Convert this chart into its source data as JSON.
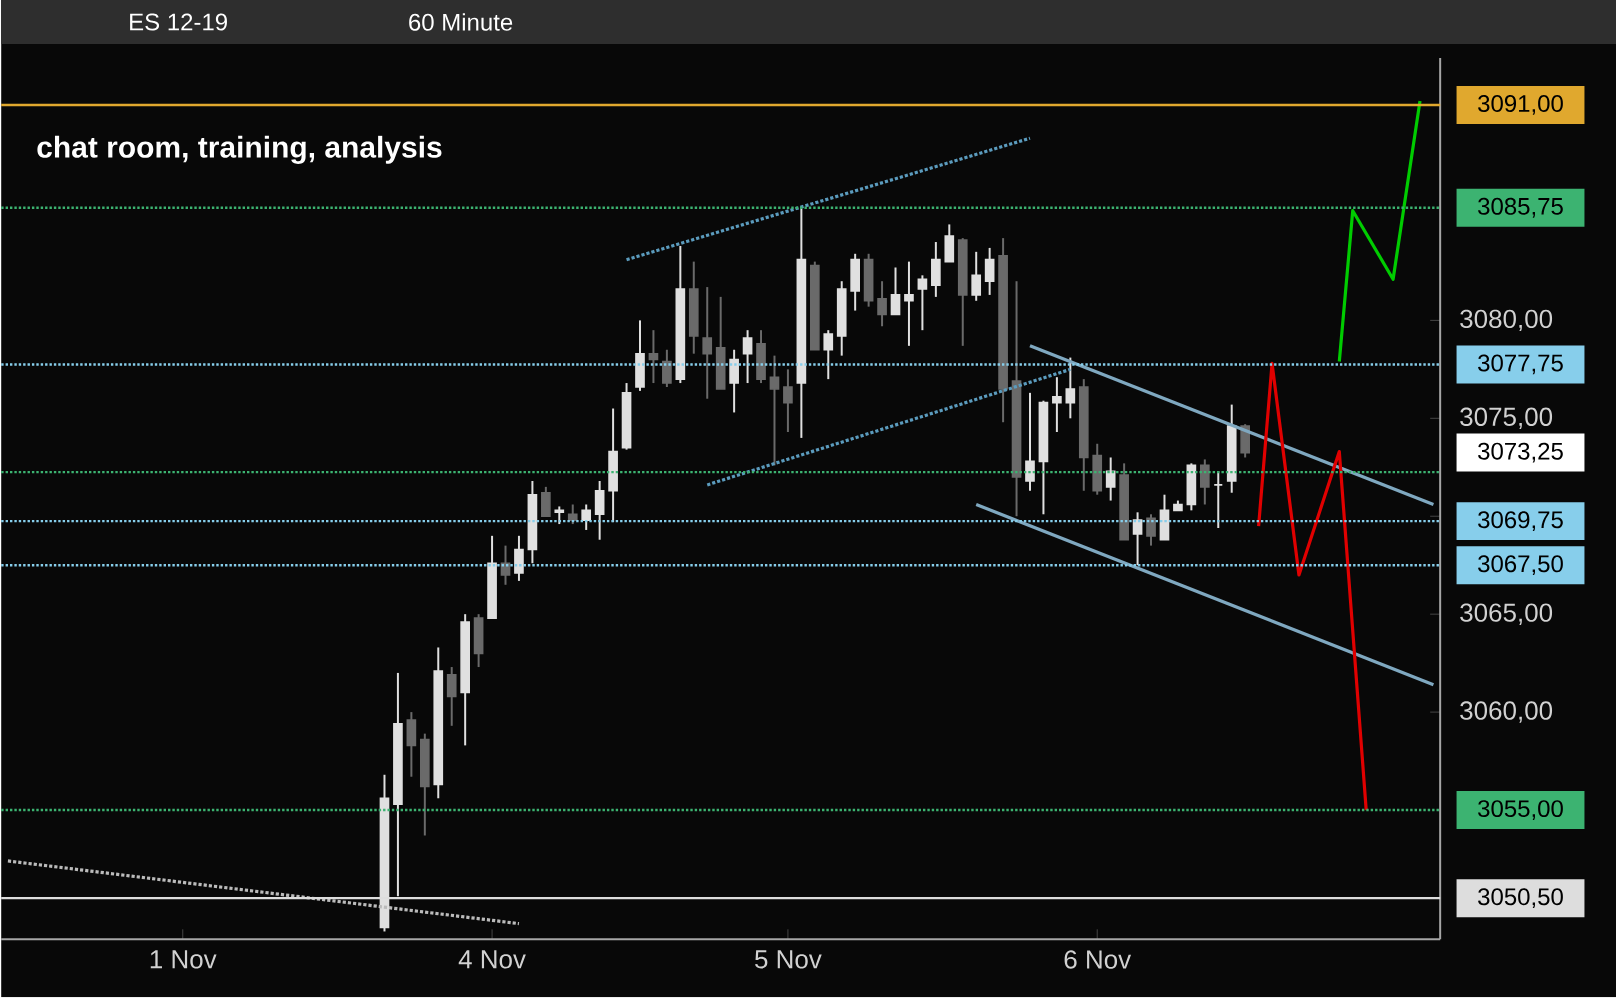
{
  "chart_data": {
    "type": "candlestick",
    "title": "ES 12-19",
    "subtitle": "chat room, training, analysis",
    "annotations": [
      "60 Minute",
      "3073,25"
    ],
    "categories": [
      null,
      null,
      null,
      null,
      null,
      null,
      null,
      null,
      null,
      null,
      null,
      null,
      null,
      "1 Nov",
      null,
      null,
      null,
      null,
      null,
      null,
      null,
      null,
      null,
      null,
      null,
      null,
      null,
      null,
      null,
      null,
      null,
      null,
      null,
      null,
      null,
      null,
      "4 Nov",
      null,
      null,
      null,
      null,
      null,
      null,
      null,
      null,
      null,
      null,
      null,
      null,
      null,
      null,
      null,
      null,
      null,
      null,
      null,
      null,
      null,
      "5 Nov",
      null,
      null,
      null,
      null,
      null,
      null,
      null,
      null,
      null,
      null,
      null,
      null,
      null,
      null,
      null,
      null,
      null,
      null,
      null,
      null,
      null,
      null,
      "6 Nov",
      null,
      null,
      null,
      null,
      null,
      null,
      null,
      null,
      null,
      null,
      null,
      null,
      null,
      null,
      null,
      null,
      null,
      null,
      null,
      null,
      null,
      null,
      null,
      null,
      null
    ],
    "ohlc": [
      null,
      null,
      null,
      null,
      null,
      null,
      null,
      null,
      null,
      null,
      null,
      null,
      null,
      null,
      null,
      null,
      null,
      null,
      null,
      null,
      null,
      null,
      null,
      null,
      null,
      null,
      null,
      null,
      [
        3049.0,
        3056.8,
        3048.8,
        3055.6
      ],
      [
        3055.3,
        3062.0,
        3050.6,
        3059.4
      ],
      [
        3059.6,
        3060.0,
        3056.7,
        3058.3
      ],
      [
        3058.6,
        3058.9,
        3053.7,
        3056.2
      ],
      [
        3056.3,
        3063.3,
        3055.6,
        3062.1
      ],
      [
        3061.9,
        3062.3,
        3059.3,
        3060.8
      ],
      [
        3061.0,
        3065.0,
        3058.3,
        3064.6
      ],
      [
        3064.8,
        3065.0,
        3062.3,
        3063.0
      ],
      [
        3064.8,
        3069.0,
        3064.8,
        3067.6
      ],
      [
        3067.6,
        3068.5,
        3066.5,
        3067.0
      ],
      [
        3067.1,
        3069.0,
        3066.7,
        3068.3
      ],
      [
        3068.3,
        3071.8,
        3067.6,
        3071.1
      ],
      [
        3071.2,
        3071.5,
        3070.0,
        3070.0
      ],
      [
        3070.2,
        3070.5,
        3069.6,
        3070.3
      ],
      [
        3070.1,
        3070.6,
        3069.6,
        3069.8
      ],
      [
        3069.8,
        3070.6,
        3069.3,
        3070.3
      ],
      [
        3070.1,
        3071.8,
        3068.8,
        3071.3
      ],
      [
        3071.3,
        3075.5,
        3069.7,
        3073.3
      ],
      [
        3073.5,
        3076.8,
        3073.4,
        3076.3
      ],
      [
        3076.6,
        3080.0,
        3076.4,
        3078.3
      ],
      [
        3078.3,
        3079.5,
        3076.8,
        3078.0
      ],
      [
        3077.9,
        3078.5,
        3076.6,
        3076.8
      ],
      [
        3077.0,
        3083.8,
        3076.8,
        3081.6
      ],
      [
        3081.6,
        3083.0,
        3078.3,
        3079.2
      ],
      [
        3079.1,
        3081.7,
        3076.0,
        3078.3
      ],
      [
        3078.6,
        3081.2,
        3076.5,
        3076.5
      ],
      [
        3076.8,
        3078.5,
        3075.3,
        3078.0
      ],
      [
        3078.3,
        3079.5,
        3076.8,
        3079.1
      ],
      [
        3078.8,
        3079.5,
        3076.8,
        3077.0
      ],
      [
        3077.1,
        3078.2,
        3072.6,
        3076.5
      ],
      [
        3076.6,
        3077.5,
        3074.3,
        3075.8
      ],
      [
        3076.8,
        3085.7,
        3074.0,
        3083.1
      ],
      [
        3082.8,
        3083.0,
        3078.5,
        3078.5
      ],
      [
        3078.5,
        3079.5,
        3077.0,
        3079.3
      ],
      [
        3079.2,
        3082.0,
        3078.2,
        3081.6
      ],
      [
        3081.5,
        3083.4,
        3080.5,
        3083.1
      ],
      [
        3083.1,
        3083.4,
        3080.7,
        3081.0
      ],
      [
        3081.1,
        3082.0,
        3079.7,
        3080.3
      ],
      [
        3080.3,
        3082.7,
        3080.3,
        3081.3
      ],
      [
        3081.0,
        3083.0,
        3078.7,
        3081.3
      ],
      [
        3081.6,
        3082.3,
        3079.5,
        3082.1
      ],
      [
        3081.8,
        3084.0,
        3081.2,
        3083.1
      ],
      [
        3083.0,
        3084.9,
        3083.0,
        3084.3
      ],
      [
        3084.1,
        3084.2,
        3078.7,
        3081.3
      ],
      [
        3081.3,
        3083.5,
        3081.0,
        3082.3
      ],
      [
        3082.0,
        3083.7,
        3081.3,
        3083.1
      ],
      [
        3083.3,
        3084.2,
        3074.8,
        3076.5
      ],
      [
        3076.9,
        3082.0,
        3070.0,
        3072.0
      ],
      [
        3071.8,
        3076.3,
        3071.3,
        3072.8
      ],
      [
        3072.8,
        3075.9,
        3070.1,
        3075.8
      ],
      [
        3075.8,
        3077.1,
        3074.3,
        3076.1
      ],
      [
        3075.8,
        3078.1,
        3075.0,
        3076.5
      ],
      [
        3076.6,
        3077.0,
        3071.3,
        3073.0
      ],
      [
        3073.1,
        3073.7,
        3071.1,
        3071.3
      ],
      [
        3071.5,
        3073.0,
        3070.8,
        3072.3
      ],
      [
        3072.1,
        3072.7,
        3068.8,
        3068.8
      ],
      [
        3069.1,
        3070.2,
        3067.5,
        3069.8
      ],
      [
        3069.9,
        3070.1,
        3068.5,
        3069.0
      ],
      [
        3068.8,
        3071.1,
        3068.8,
        3070.3
      ],
      [
        3070.3,
        3070.8,
        3070.3,
        3070.6
      ],
      [
        3070.6,
        3072.7,
        3070.3,
        3072.6
      ],
      [
        3072.6,
        3072.9,
        3070.6,
        3071.5
      ],
      [
        3071.6,
        3072.3,
        3069.4,
        3071.6
      ],
      [
        3071.8,
        3075.7,
        3071.2,
        3074.6
      ],
      [
        3074.6,
        3074.7,
        3073.0,
        3073.25
      ],
      null,
      null,
      null,
      null,
      null,
      null,
      null,
      null,
      null,
      null,
      null,
      null,
      null,
      null
    ],
    "colors": [
      null,
      null,
      null,
      null,
      null,
      null,
      null,
      null,
      null,
      null,
      null,
      null,
      null,
      null,
      null,
      null,
      null,
      null,
      null,
      null,
      null,
      null,
      null,
      null,
      null,
      null,
      null,
      null,
      "#e0e0e0",
      "#e0e0e0",
      "#6a6a6a",
      "#6a6a6a",
      "#e0e0e0",
      "#6a6a6a",
      "#e0e0e0",
      "#6a6a6a",
      "#e0e0e0",
      "#6a6a6a",
      "#e0e0e0",
      "#e0e0e0",
      "#6a6a6a",
      "#e0e0e0",
      "#6a6a6a",
      "#e0e0e0",
      "#e0e0e0",
      "#e0e0e0",
      "#e0e0e0",
      "#e0e0e0",
      "#6a6a6a",
      "#6a6a6a",
      "#e0e0e0",
      "#6a6a6a",
      "#6a6a6a",
      "#6a6a6a",
      "#e0e0e0",
      "#e0e0e0",
      "#6a6a6a",
      "#6a6a6a",
      "#6a6a6a",
      "#e0e0e0",
      "#6a6a6a",
      "#e0e0e0",
      "#e0e0e0",
      "#e0e0e0",
      "#6a6a6a",
      "#6a6a6a",
      "#e0e0e0",
      "#e0e0e0",
      "#e0e0e0",
      "#e0e0e0",
      "#e0e0e0",
      "#6a6a6a",
      "#e0e0e0",
      "#e0e0e0",
      "#6a6a6a",
      "#6a6a6a",
      "#e0e0e0",
      "#e0e0e0",
      "#e0e0e0",
      "#e0e0e0",
      "#6a6a6a",
      "#6a6a6a",
      "#e0e0e0",
      "#6a6a6a",
      "#e0e0e0",
      "#6a6a6a",
      "#e0e0e0",
      "#e0e0e0",
      "#e0e0e0",
      "#6a6a6a",
      "#e0e0e0",
      "#e0e0e0",
      "#6a6a6a",
      null,
      null,
      null,
      null,
      null,
      null,
      null,
      null,
      null,
      null,
      null,
      null,
      null,
      null
    ],
    "series": [
      {
        "type": "line",
        "color": "#5b9bbd",
        "line_style": "dotted",
        "values": [
          null,
          null,
          null,
          null,
          null,
          null,
          null,
          null,
          null,
          null,
          null,
          null,
          null,
          null,
          null,
          null,
          null,
          null,
          null,
          null,
          null,
          null,
          null,
          null,
          null,
          null,
          null,
          null,
          null,
          null,
          null,
          null,
          null,
          null,
          null,
          null,
          null,
          null,
          null,
          null,
          null,
          null,
          null,
          null,
          null,
          null,
          3083.1,
          null,
          null,
          null,
          null,
          null,
          null,
          null,
          null,
          null,
          null,
          null,
          null,
          null,
          null,
          null,
          null,
          null,
          null,
          null,
          null,
          null,
          null,
          null,
          null,
          null,
          null,
          null,
          null,
          null,
          3089.3,
          null,
          null,
          null,
          null,
          null,
          null,
          null,
          null,
          null,
          null,
          null,
          null,
          null,
          null,
          null,
          null,
          null,
          null,
          null,
          null,
          null,
          null,
          null,
          null,
          null,
          null,
          null,
          null,
          null,
          null
        ]
      },
      {
        "type": "line",
        "color": "#5b9bbd",
        "line_style": "dotted",
        "values": [
          null,
          null,
          null,
          null,
          null,
          null,
          null,
          null,
          null,
          null,
          null,
          null,
          null,
          null,
          null,
          null,
          null,
          null,
          null,
          null,
          null,
          null,
          null,
          null,
          null,
          null,
          null,
          null,
          null,
          null,
          null,
          null,
          null,
          null,
          null,
          null,
          null,
          null,
          null,
          null,
          null,
          null,
          null,
          null,
          null,
          null,
          null,
          null,
          null,
          null,
          null,
          null,
          3071.6,
          null,
          null,
          null,
          null,
          null,
          null,
          null,
          null,
          null,
          null,
          null,
          null,
          null,
          null,
          null,
          null,
          null,
          null,
          null,
          null,
          null,
          null,
          null,
          null,
          null,
          null,
          3077.5,
          null,
          null,
          null,
          null,
          null,
          null,
          null,
          null,
          null,
          null,
          null,
          null,
          null,
          null,
          null,
          null,
          null,
          null,
          null,
          null,
          null,
          null,
          null,
          null,
          null,
          null,
          null
        ]
      },
      {
        "type": "line",
        "color": "#7fa8c0",
        "line_style": "solid",
        "values": [
          null,
          null,
          null,
          null,
          null,
          null,
          null,
          null,
          null,
          null,
          null,
          null,
          null,
          null,
          null,
          null,
          null,
          null,
          null,
          null,
          null,
          null,
          null,
          null,
          null,
          null,
          null,
          null,
          null,
          null,
          null,
          null,
          null,
          null,
          null,
          null,
          null,
          null,
          null,
          null,
          null,
          null,
          null,
          null,
          null,
          null,
          null,
          null,
          null,
          null,
          null,
          null,
          null,
          null,
          null,
          null,
          null,
          null,
          null,
          null,
          null,
          null,
          null,
          null,
          null,
          null,
          null,
          null,
          null,
          null,
          null,
          null,
          null,
          null,
          null,
          null,
          3078.7,
          null,
          null,
          null,
          null,
          null,
          null,
          null,
          null,
          null,
          null,
          null,
          null,
          null,
          null,
          null,
          null,
          null,
          null,
          null,
          null,
          null,
          null,
          null,
          null,
          null,
          null,
          null,
          null,
          null,
          3070.6
        ]
      },
      {
        "type": "line",
        "color": "#7fa8c0",
        "line_style": "solid",
        "values": [
          null,
          null,
          null,
          null,
          null,
          null,
          null,
          null,
          null,
          null,
          null,
          null,
          null,
          null,
          null,
          null,
          null,
          null,
          null,
          null,
          null,
          null,
          null,
          null,
          null,
          null,
          null,
          null,
          null,
          null,
          null,
          null,
          null,
          null,
          null,
          null,
          null,
          null,
          null,
          null,
          null,
          null,
          null,
          null,
          null,
          null,
          null,
          null,
          null,
          null,
          null,
          null,
          null,
          null,
          null,
          null,
          null,
          null,
          null,
          null,
          null,
          null,
          null,
          null,
          null,
          null,
          null,
          null,
          null,
          null,
          null,
          null,
          3070.6,
          null,
          null,
          null,
          null,
          null,
          null,
          null,
          null,
          null,
          null,
          null,
          null,
          null,
          null,
          null,
          null,
          null,
          null,
          null,
          null,
          null,
          null,
          null,
          null,
          null,
          null,
          null,
          null,
          null,
          null,
          null,
          null,
          null,
          3061.4
        ]
      },
      {
        "type": "line",
        "color": "#bbbbbb",
        "line_style": "dotted",
        "values": [
          3052.4,
          null,
          null,
          null,
          null,
          null,
          null,
          null,
          null,
          null,
          null,
          null,
          null,
          null,
          null,
          null,
          null,
          null,
          null,
          null,
          null,
          null,
          null,
          null,
          null,
          null,
          null,
          null,
          null,
          null,
          null,
          null,
          null,
          null,
          null,
          null,
          null,
          null,
          3049.2,
          null,
          null,
          null,
          null,
          null,
          null,
          null,
          null,
          null,
          null,
          null,
          null,
          null,
          null,
          null,
          null,
          null,
          null,
          null,
          null,
          null,
          null,
          null,
          null,
          null,
          null,
          null,
          null,
          null,
          null,
          null,
          null,
          null,
          null,
          null,
          null,
          null,
          null,
          null,
          null,
          null,
          null,
          null,
          null,
          null,
          null,
          null,
          null,
          null,
          null,
          null,
          null,
          null,
          null,
          null,
          null,
          null,
          null,
          null,
          null,
          null,
          null,
          null,
          null,
          null,
          null,
          null,
          null
        ]
      },
      {
        "type": "line",
        "color": "#e00000",
        "line_style": "solid",
        "values": [
          null,
          null,
          null,
          null,
          null,
          null,
          null,
          null,
          null,
          null,
          null,
          null,
          null,
          null,
          null,
          null,
          null,
          null,
          null,
          null,
          null,
          null,
          null,
          null,
          null,
          null,
          null,
          null,
          null,
          null,
          null,
          null,
          null,
          null,
          null,
          null,
          null,
          null,
          null,
          null,
          null,
          null,
          null,
          null,
          null,
          null,
          null,
          null,
          null,
          null,
          null,
          null,
          null,
          null,
          null,
          null,
          null,
          null,
          null,
          null,
          null,
          null,
          null,
          null,
          null,
          null,
          null,
          null,
          null,
          null,
          null,
          null,
          null,
          null,
          null,
          null,
          null,
          null,
          null,
          null,
          null,
          null,
          null,
          null,
          null,
          null,
          null,
          null,
          null,
          null,
          null,
          null,
          null,
          3069.5,
          3077.8,
          null,
          3067.0,
          null,
          null,
          3073.3,
          null,
          3055.0,
          null,
          null,
          null,
          null,
          null
        ]
      },
      {
        "type": "line",
        "color": "#00cc00",
        "line_style": "solid",
        "values": [
          null,
          null,
          null,
          null,
          null,
          null,
          null,
          null,
          null,
          null,
          null,
          null,
          null,
          null,
          null,
          null,
          null,
          null,
          null,
          null,
          null,
          null,
          null,
          null,
          null,
          null,
          null,
          null,
          null,
          null,
          null,
          null,
          null,
          null,
          null,
          null,
          null,
          null,
          null,
          null,
          null,
          null,
          null,
          null,
          null,
          null,
          null,
          null,
          null,
          null,
          null,
          null,
          null,
          null,
          null,
          null,
          null,
          null,
          null,
          null,
          null,
          null,
          null,
          null,
          null,
          null,
          null,
          null,
          null,
          null,
          null,
          null,
          null,
          null,
          null,
          null,
          null,
          null,
          null,
          null,
          null,
          null,
          null,
          null,
          null,
          null,
          null,
          null,
          null,
          null,
          null,
          null,
          null,
          null,
          null,
          null,
          null,
          null,
          null,
          3077.9,
          3085.6,
          null,
          null,
          3082.1,
          null,
          3091.2,
          null
        ]
      }
    ],
    "ref_lines": [
      {
        "axis": "y",
        "value": 3091.0,
        "label": "3091,00",
        "color": "#e0a82e",
        "line_style": "solid"
      },
      {
        "axis": "y",
        "value": 3085.75,
        "label": "3085,75",
        "color": "#3cb371",
        "line_style": "dotted"
      },
      {
        "axis": "y",
        "value": 3077.75,
        "label": "3077,75",
        "color": "#87ceeb",
        "line_style": "dotted"
      },
      {
        "axis": "y",
        "value": 3072.25,
        "color": "#3cb371",
        "line_style": "dotted"
      },
      {
        "axis": "y",
        "value": 3069.75,
        "label": "3069,75",
        "color": "#87ceeb",
        "line_style": "dotted"
      },
      {
        "axis": "y",
        "value": 3067.5,
        "label": "3067,50",
        "color": "#87ceeb",
        "line_style": "dotted"
      },
      {
        "axis": "y",
        "value": 3055.0,
        "label": "3055,00",
        "color": "#3cb371",
        "line_style": "dotted"
      },
      {
        "axis": "y",
        "value": 3050.5,
        "label": "3050,50",
        "color": "#dddddd",
        "line_style": "solid"
      }
    ],
    "ylim": [
      3048.4,
      3093.4
    ],
    "yticks": [
      {
        "value": 3060,
        "label": "3060,00"
      },
      {
        "value": 3065,
        "label": "3065,00"
      },
      {
        "value": 3070,
        "label": null
      },
      {
        "value": 3075,
        "label": "3075,00"
      },
      {
        "value": 3080,
        "label": "3080,00"
      }
    ]
  }
}
